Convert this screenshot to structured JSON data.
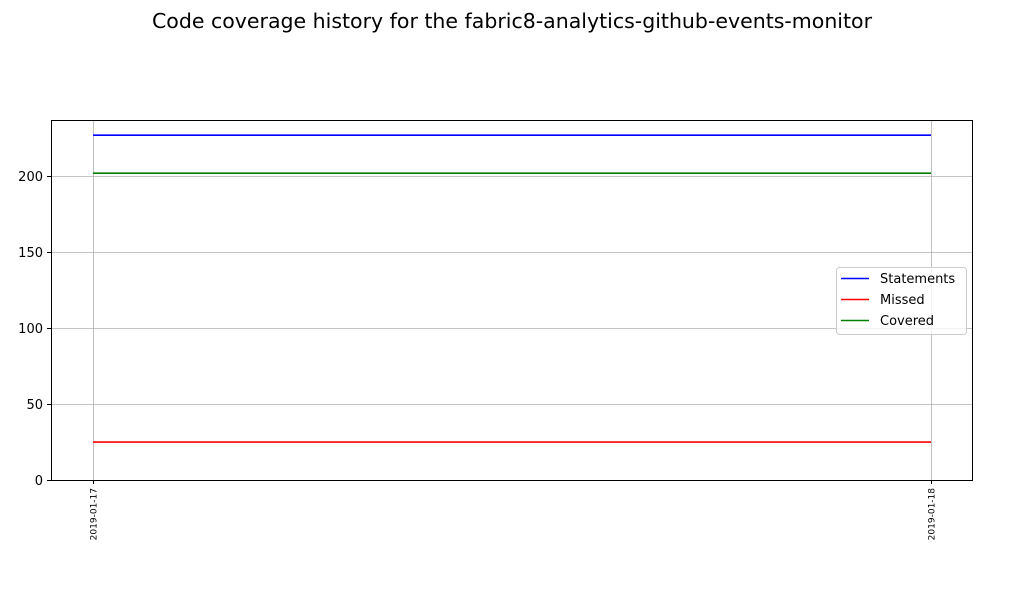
{
  "chart_data": {
    "type": "line",
    "title": "Code coverage history for the fabric8-analytics-github-events-monitor",
    "xlabel": "",
    "ylabel": "",
    "x": [
      "2019-01-17",
      "2019-01-18"
    ],
    "ylim": [
      0,
      237
    ],
    "yticks": [
      0,
      50,
      100,
      150,
      200
    ],
    "grid": true,
    "legend_position": "center-right",
    "series": [
      {
        "name": "Statements",
        "color": "#0000ff",
        "values": [
          227,
          227
        ]
      },
      {
        "name": "Missed",
        "color": "#ff0000",
        "values": [
          25,
          25
        ]
      },
      {
        "name": "Covered",
        "color": "#008000",
        "values": [
          202,
          202
        ]
      }
    ]
  }
}
